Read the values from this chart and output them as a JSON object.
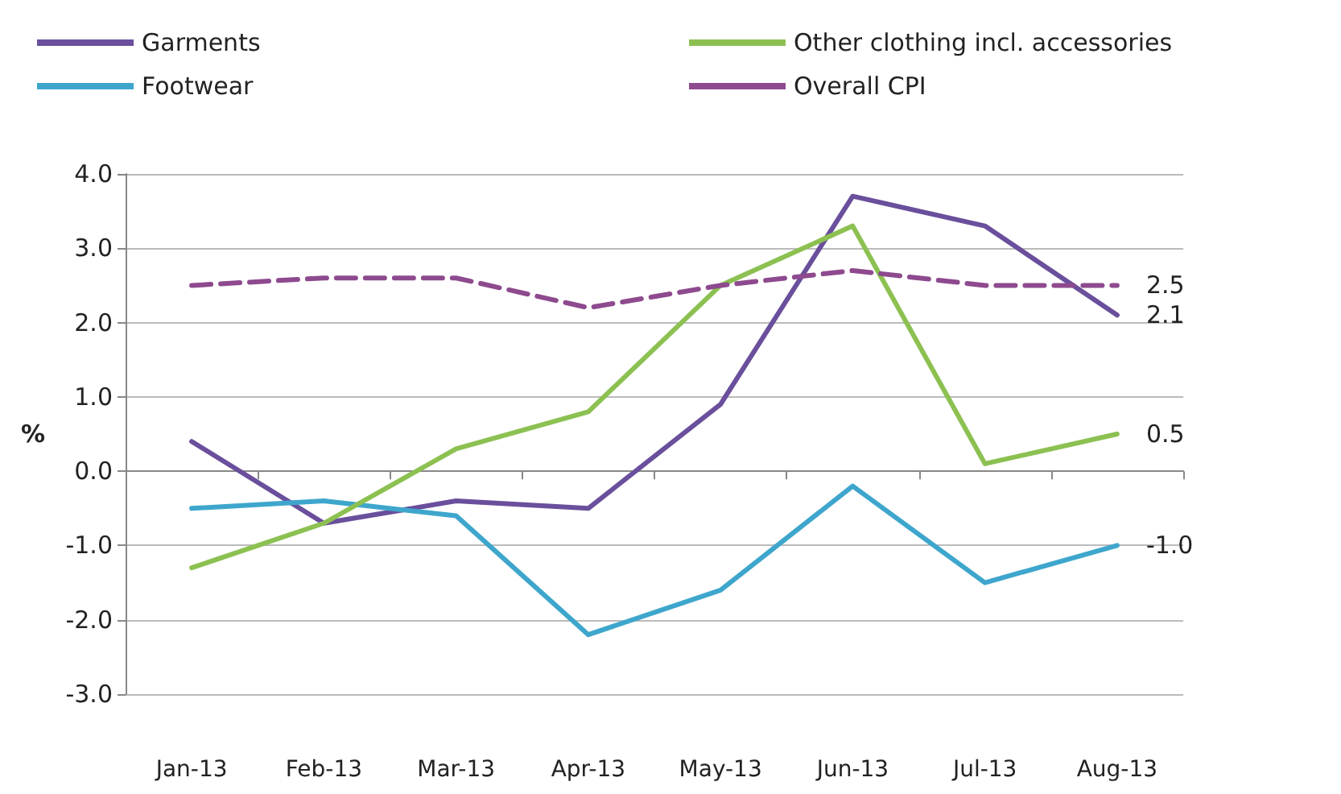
{
  "chart_data": {
    "type": "line",
    "ylabel": "%",
    "categories": [
      "Jan-13",
      "Feb-13",
      "Mar-13",
      "Apr-13",
      "May-13",
      "Jun-13",
      "Jul-13",
      "Aug-13"
    ],
    "series": [
      {
        "name": "Garments",
        "color": "#6a4f9c",
        "values": [
          0.4,
          -0.7,
          -0.4,
          -0.5,
          0.9,
          3.7,
          3.3,
          2.1
        ],
        "value_labels": [
          null,
          null,
          null,
          null,
          null,
          null,
          null,
          "2.1"
        ]
      },
      {
        "name": "Footwear",
        "color": "#3ea6cc",
        "values": [
          -0.5,
          -0.4,
          -0.6,
          -2.2,
          -1.6,
          -0.2,
          -1.5,
          -1.0
        ],
        "value_labels": [
          null,
          null,
          null,
          null,
          null,
          null,
          null,
          "-1.0"
        ]
      },
      {
        "name": "Other clothing incl. accessories",
        "color": "#8cc152",
        "values": [
          -1.3,
          -0.7,
          0.3,
          0.8,
          2.5,
          3.3,
          0.1,
          0.5
        ],
        "value_labels": [
          null,
          null,
          null,
          null,
          null,
          null,
          null,
          "0.5"
        ]
      },
      {
        "name": "Overall CPI",
        "color": "#8e4a8e",
        "line_style": "dashed",
        "values": [
          2.5,
          2.6,
          2.6,
          2.2,
          2.5,
          2.7,
          2.5,
          2.5
        ],
        "value_labels": [
          null,
          null,
          null,
          null,
          null,
          null,
          null,
          "2.5"
        ]
      }
    ],
    "ylim": [
      -3,
      4
    ],
    "yticks": [
      {
        "value": -3,
        "label": "-3.0"
      },
      {
        "value": -2,
        "label": "-2.0"
      },
      {
        "value": -1,
        "label": "-1.0"
      },
      {
        "value": 0,
        "label": "0.0"
      },
      {
        "value": 1,
        "label": "1.0"
      },
      {
        "value": 2,
        "label": "2.0"
      },
      {
        "value": 3,
        "label": "3.0"
      },
      {
        "value": 4,
        "label": "4.0"
      }
    ],
    "grid": "y",
    "legend": "top",
    "marker": "none"
  }
}
